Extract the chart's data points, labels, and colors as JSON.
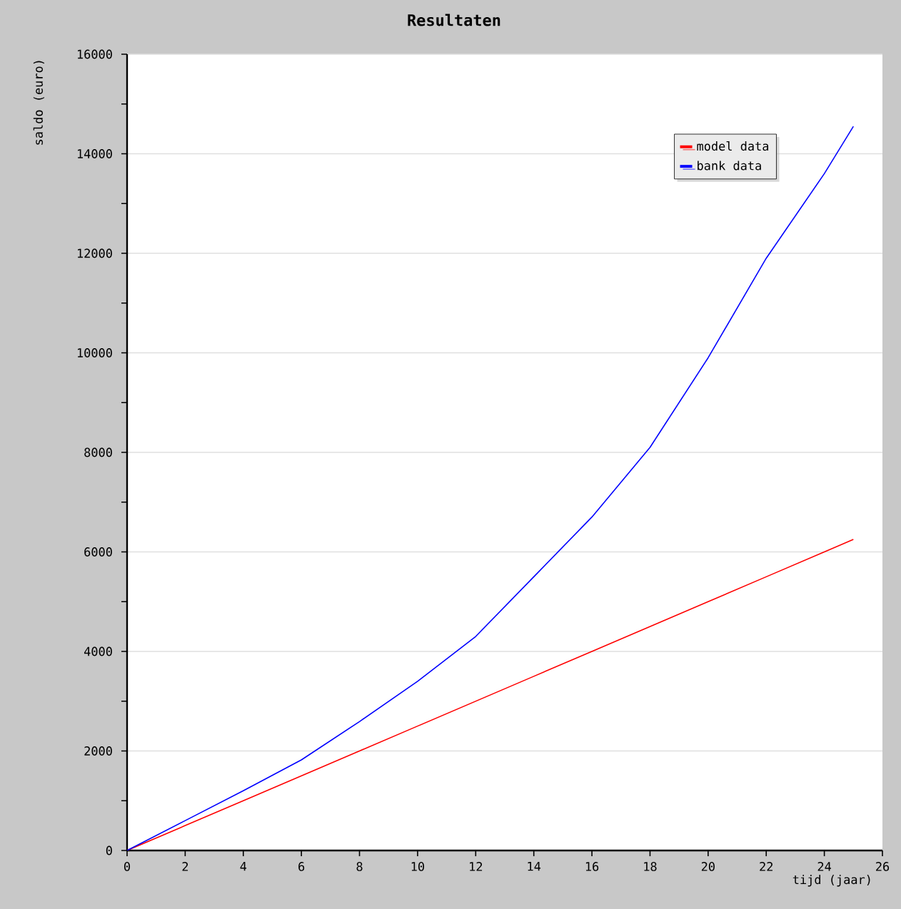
{
  "chart_data": {
    "type": "line",
    "title": "Resultaten",
    "xlabel": "tijd (jaar)",
    "ylabel": "saldo (euro)",
    "x": [
      0,
      2,
      4,
      6,
      8,
      10,
      12,
      14,
      16,
      18,
      20,
      22,
      24,
      25
    ],
    "series": [
      {
        "name": "model data",
        "color": "#ff0000",
        "values": [
          0,
          500,
          1000,
          1500,
          2000,
          2500,
          3000,
          3500,
          4000,
          4500,
          5000,
          5500,
          6000,
          6250
        ]
      },
      {
        "name": "bank data",
        "color": "#0000ff",
        "values": [
          0,
          600,
          1200,
          1820,
          2590,
          3400,
          4300,
          5500,
          6700,
          8100,
          9900,
          11900,
          13600,
          14550
        ]
      }
    ],
    "xlim": [
      0,
      26
    ],
    "ylim": [
      0,
      16000
    ],
    "xticks": [
      0,
      2,
      4,
      6,
      8,
      10,
      12,
      14,
      16,
      18,
      20,
      22,
      24,
      26
    ],
    "yticks": [
      0,
      2000,
      4000,
      6000,
      8000,
      10000,
      12000,
      14000,
      16000
    ],
    "grid": "y",
    "legend": "top right",
    "marker": "none",
    "line_style": "solid"
  }
}
